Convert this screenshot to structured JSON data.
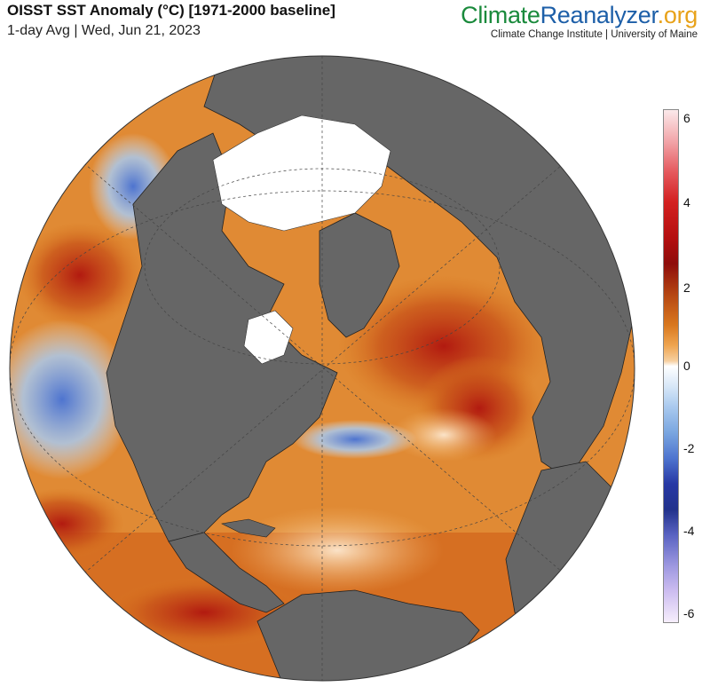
{
  "header": {
    "title": "OISST SST Anomaly (°C) [1971-2000 baseline]",
    "subtitle": "1-day Avg | Wed, Jun 21, 2023"
  },
  "brand": {
    "part1": "Climate",
    "part2": "Reanalyzer",
    "part3": ".org",
    "tagline": "Climate Change Institute | University of Maine",
    "colors": {
      "part1": "#1a8a3c",
      "part2": "#1d5fa8",
      "part3": "#e8a21a"
    }
  },
  "colorbar": {
    "ticks": [
      "6",
      "4",
      "2",
      "0",
      "-2",
      "-4",
      "-6"
    ],
    "range": [
      -6,
      6
    ],
    "colors": {
      "hot": "#b40f10",
      "warm": "#d9781f",
      "neutral": "#ffffff",
      "cool": "#4e74cf",
      "cold": "#cdbdf0"
    }
  },
  "map": {
    "land_color": "#666666",
    "ice_color": "#ffffff"
  }
}
